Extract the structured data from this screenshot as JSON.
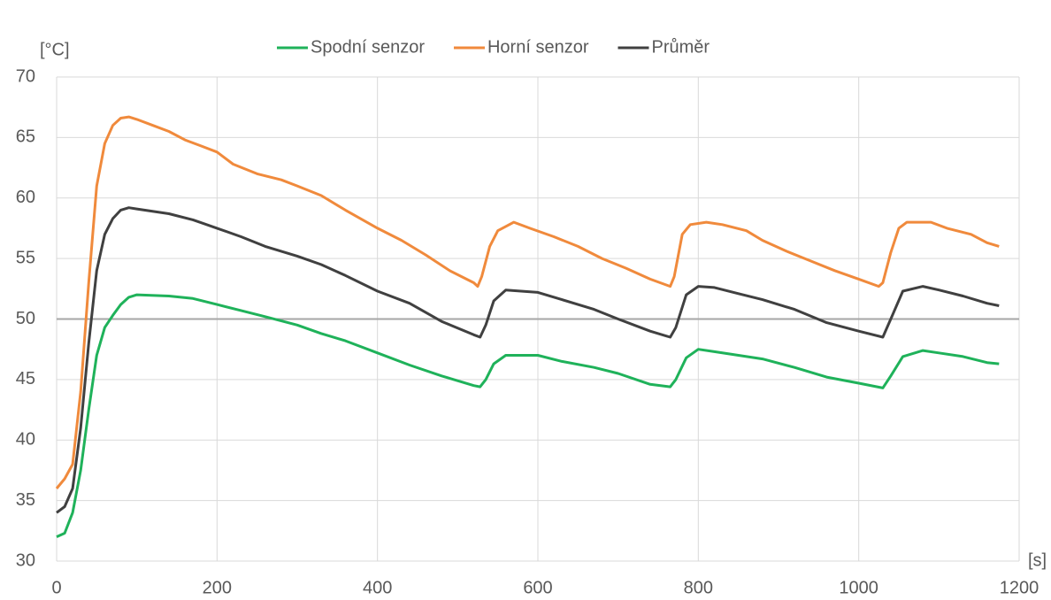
{
  "chart_data": {
    "type": "line",
    "y_label": "[°C]",
    "x_label": "[s]",
    "xlim": [
      0,
      1200
    ],
    "xticks": [
      0,
      200,
      400,
      600,
      800,
      1000,
      1200
    ],
    "ylim": [
      30,
      70
    ],
    "yticks": [
      30,
      35,
      40,
      45,
      50,
      55,
      60,
      65,
      70
    ],
    "grid": true,
    "reference_line": 50,
    "legend": "top",
    "series": [
      {
        "name": "Spodní senzor",
        "color": "#1fb25a",
        "x": [
          0,
          10,
          20,
          30,
          40,
          50,
          60,
          70,
          80,
          90,
          100,
          140,
          170,
          200,
          230,
          260,
          300,
          330,
          360,
          400,
          440,
          480,
          520,
          528,
          535,
          545,
          560,
          600,
          630,
          670,
          700,
          740,
          765,
          772,
          785,
          800,
          820,
          850,
          880,
          920,
          960,
          1000,
          1030,
          1040,
          1055,
          1080,
          1100,
          1130,
          1160,
          1175
        ],
        "values": [
          32,
          32.3,
          34,
          37.5,
          42.5,
          47,
          49.3,
          50.3,
          51.2,
          51.8,
          52,
          51.9,
          51.7,
          51.2,
          50.7,
          50.2,
          49.5,
          48.8,
          48.2,
          47.2,
          46.2,
          45.3,
          44.5,
          44.4,
          45,
          46.3,
          47,
          47,
          46.5,
          46,
          45.5,
          44.6,
          44.4,
          45,
          46.8,
          47.5,
          47.3,
          47,
          46.7,
          46,
          45.2,
          44.7,
          44.3,
          45.3,
          46.9,
          47.4,
          47.2,
          46.9,
          46.4,
          46.3
        ]
      },
      {
        "name": "Horní senzor",
        "color": "#f08a3c",
        "x": [
          0,
          10,
          20,
          30,
          40,
          50,
          60,
          70,
          80,
          90,
          100,
          120,
          140,
          160,
          180,
          200,
          220,
          250,
          280,
          300,
          330,
          360,
          400,
          430,
          460,
          490,
          520,
          525,
          530,
          540,
          550,
          570,
          590,
          620,
          650,
          680,
          710,
          740,
          765,
          770,
          780,
          790,
          810,
          830,
          860,
          880,
          910,
          940,
          970,
          1000,
          1025,
          1030,
          1040,
          1050,
          1060,
          1090,
          1110,
          1140,
          1160,
          1175
        ],
        "values": [
          36,
          36.8,
          38,
          44,
          53,
          61,
          64.5,
          66,
          66.6,
          66.7,
          66.5,
          66,
          65.5,
          64.8,
          64.3,
          63.8,
          62.8,
          62,
          61.5,
          61,
          60.2,
          59,
          57.5,
          56.5,
          55.3,
          54,
          53,
          52.7,
          53.5,
          56,
          57.3,
          58,
          57.5,
          56.8,
          56,
          55,
          54.2,
          53.3,
          52.7,
          53.5,
          57,
          57.8,
          58,
          57.8,
          57.3,
          56.5,
          55.6,
          54.8,
          54,
          53.3,
          52.7,
          53,
          55.5,
          57.5,
          58,
          58,
          57.5,
          57,
          56.3,
          56
        ]
      },
      {
        "name": "Průměr",
        "color": "#404040",
        "x": [
          0,
          10,
          20,
          30,
          40,
          50,
          60,
          70,
          80,
          90,
          100,
          140,
          170,
          200,
          230,
          260,
          300,
          330,
          360,
          400,
          440,
          480,
          520,
          528,
          535,
          545,
          560,
          600,
          630,
          670,
          700,
          740,
          765,
          772,
          785,
          800,
          820,
          850,
          880,
          920,
          960,
          1000,
          1030,
          1040,
          1055,
          1080,
          1100,
          1130,
          1160,
          1175
        ],
        "values": [
          34,
          34.5,
          36,
          41,
          48,
          54,
          57,
          58.3,
          59,
          59.2,
          59.1,
          58.7,
          58.2,
          57.5,
          56.8,
          56,
          55.2,
          54.5,
          53.6,
          52.3,
          51.3,
          49.8,
          48.7,
          48.5,
          49.5,
          51.5,
          52.4,
          52.2,
          51.6,
          50.8,
          50,
          49,
          48.5,
          49.3,
          52,
          52.7,
          52.6,
          52.1,
          51.6,
          50.8,
          49.7,
          49,
          48.5,
          50,
          52.3,
          52.7,
          52.4,
          51.9,
          51.3,
          51.1
        ]
      }
    ]
  }
}
